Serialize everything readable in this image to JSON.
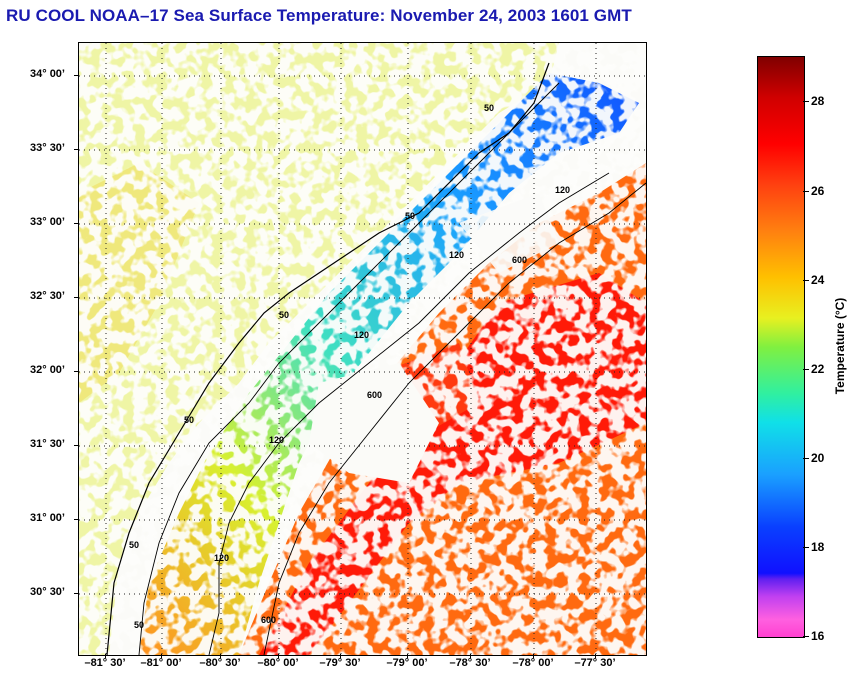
{
  "title": "RU COOL  NOAA–17  Sea Surface Temperature:  November 24, 2003 1601 GMT",
  "latitude_labels": [
    "34° 00’",
    "33° 30’",
    "33° 00’",
    "32° 30’",
    "32° 00’",
    "31° 30’",
    "31° 00’",
    "30° 30’"
  ],
  "longitude_labels": [
    "–81° 30’",
    "–81° 00’",
    "–80° 30’",
    "–80° 00’",
    "–79° 30’",
    "–79° 00’",
    "–78° 30’",
    "–78° 00’",
    "–77° 30’"
  ],
  "colorbar": {
    "title": "Temperature (°C)",
    "ticks": [
      "16",
      "18",
      "20",
      "22",
      "24",
      "26",
      "28"
    ],
    "min": 16,
    "max": 29
  },
  "isobath_labels": [
    "50",
    "50",
    "50",
    "50",
    "50",
    "50",
    "120",
    "120",
    "120",
    "120",
    "120",
    "600",
    "600",
    "600"
  ],
  "colors": {
    "title": "#1a1ab0",
    "cold": "#1040ff",
    "warm": "#ff1010",
    "no_data": "#fbfbf8"
  }
}
